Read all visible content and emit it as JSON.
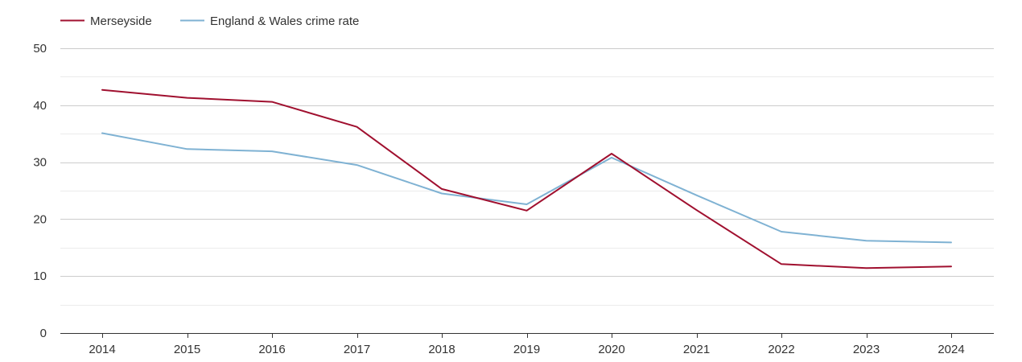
{
  "chart_data": {
    "type": "line",
    "title": "",
    "xlabel": "",
    "ylabel": "",
    "categories": [
      "2014",
      "2015",
      "2016",
      "2017",
      "2018",
      "2019",
      "2020",
      "2021",
      "2022",
      "2023",
      "2024"
    ],
    "ylim": [
      0,
      50
    ],
    "yticks": [
      0,
      10,
      20,
      30,
      40,
      50
    ],
    "grid": true,
    "legend_position": "top-left",
    "series": [
      {
        "name": "Merseyside",
        "color": "#a0102f",
        "values": [
          42.7,
          41.3,
          40.6,
          36.2,
          25.3,
          21.5,
          31.5,
          21.6,
          12.1,
          11.4,
          11.7
        ]
      },
      {
        "name": "England & Wales crime rate",
        "color": "#7fb2d3",
        "values": [
          35.1,
          32.3,
          31.9,
          29.5,
          24.5,
          22.6,
          30.8,
          24.2,
          17.8,
          16.2,
          15.9
        ]
      }
    ]
  }
}
